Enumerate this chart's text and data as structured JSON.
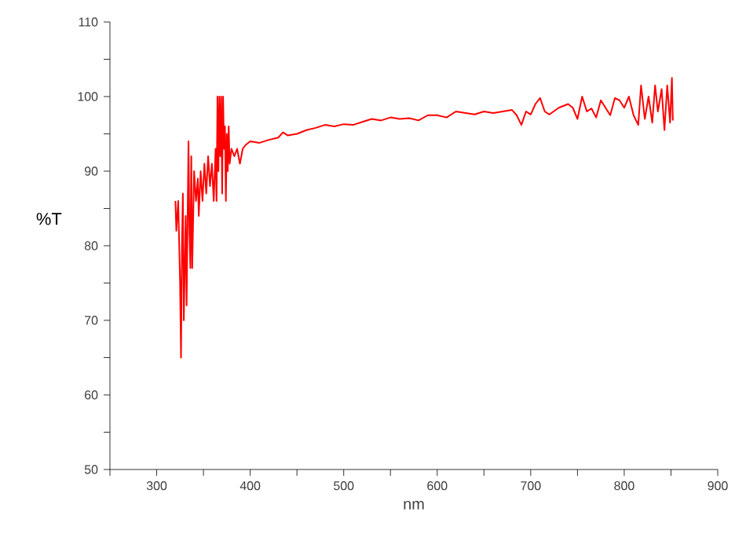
{
  "chart_data": {
    "type": "line",
    "xlabel": "nm",
    "ylabel": "%T",
    "color": "#ff0000",
    "xlim": [
      250,
      900
    ],
    "ylim": [
      50,
      110
    ],
    "xticks": [
      {
        "value": 250,
        "label": null
      },
      300,
      {
        "value": 350,
        "label": null
      },
      400,
      {
        "value": 450,
        "label": null
      },
      500,
      {
        "value": 550,
        "label": null
      },
      600,
      {
        "value": 650,
        "label": null
      },
      700,
      {
        "value": 750,
        "label": null
      },
      800,
      {
        "value": 850,
        "label": null
      },
      900
    ],
    "yticks": [
      50,
      {
        "value": 55,
        "label": null
      },
      60,
      {
        "value": 65,
        "label": null
      },
      70,
      {
        "value": 75,
        "label": null
      },
      80,
      {
        "value": 85,
        "label": null
      },
      90,
      {
        "value": 95,
        "label": null
      },
      100,
      {
        "value": 105,
        "label": null
      },
      110
    ],
    "x": [
      320,
      321,
      323,
      325,
      326,
      327,
      328,
      329,
      331,
      332,
      334,
      335,
      336,
      337,
      338,
      340,
      342,
      344,
      345,
      347,
      349,
      351,
      353,
      355,
      357,
      359,
      361,
      363,
      364,
      365,
      366,
      367,
      368,
      369,
      370,
      371,
      372,
      373,
      374,
      375,
      376,
      377,
      378,
      380,
      383,
      386,
      389,
      392,
      395,
      400,
      410,
      420,
      430,
      435,
      440,
      450,
      460,
      470,
      480,
      490,
      500,
      510,
      520,
      530,
      540,
      550,
      560,
      570,
      580,
      590,
      600,
      610,
      620,
      630,
      640,
      650,
      660,
      670,
      680,
      685,
      690,
      695,
      700,
      705,
      710,
      715,
      720,
      730,
      740,
      745,
      750,
      755,
      760,
      765,
      770,
      775,
      780,
      785,
      790,
      795,
      800,
      805,
      810,
      815,
      818,
      822,
      826,
      830,
      833,
      836,
      840,
      843,
      846,
      849,
      851,
      852
    ],
    "values": [
      86,
      82,
      86,
      75,
      65,
      80,
      87,
      70,
      84,
      72,
      94,
      82,
      77,
      92,
      77,
      90,
      86,
      89,
      84,
      90,
      86,
      91,
      87,
      92,
      88,
      91,
      86,
      93,
      86,
      100,
      90,
      100,
      92,
      100,
      87,
      100,
      93,
      96,
      86,
      95,
      90,
      96,
      91,
      93,
      92,
      93,
      91,
      93,
      93.5,
      94,
      93.8,
      94.2,
      94.5,
      95.2,
      94.8,
      95,
      95.5,
      95.8,
      96.2,
      96,
      96.3,
      96.2,
      96.6,
      97,
      96.8,
      97.2,
      97,
      97.1,
      96.8,
      97.5,
      97.5,
      97.2,
      98,
      97.8,
      97.6,
      98,
      97.8,
      98,
      98.2,
      97.5,
      96.2,
      98,
      97.6,
      99,
      99.8,
      98,
      97.6,
      98.5,
      99,
      98.5,
      97,
      100,
      98,
      98.4,
      97.2,
      99.5,
      98.5,
      97.5,
      99.8,
      99.5,
      98.5,
      100,
      97.5,
      96.2,
      101.5,
      97,
      100,
      96.5,
      101.5,
      98,
      101,
      95.5,
      101.5,
      96.5,
      102.5,
      96.8
    ]
  }
}
